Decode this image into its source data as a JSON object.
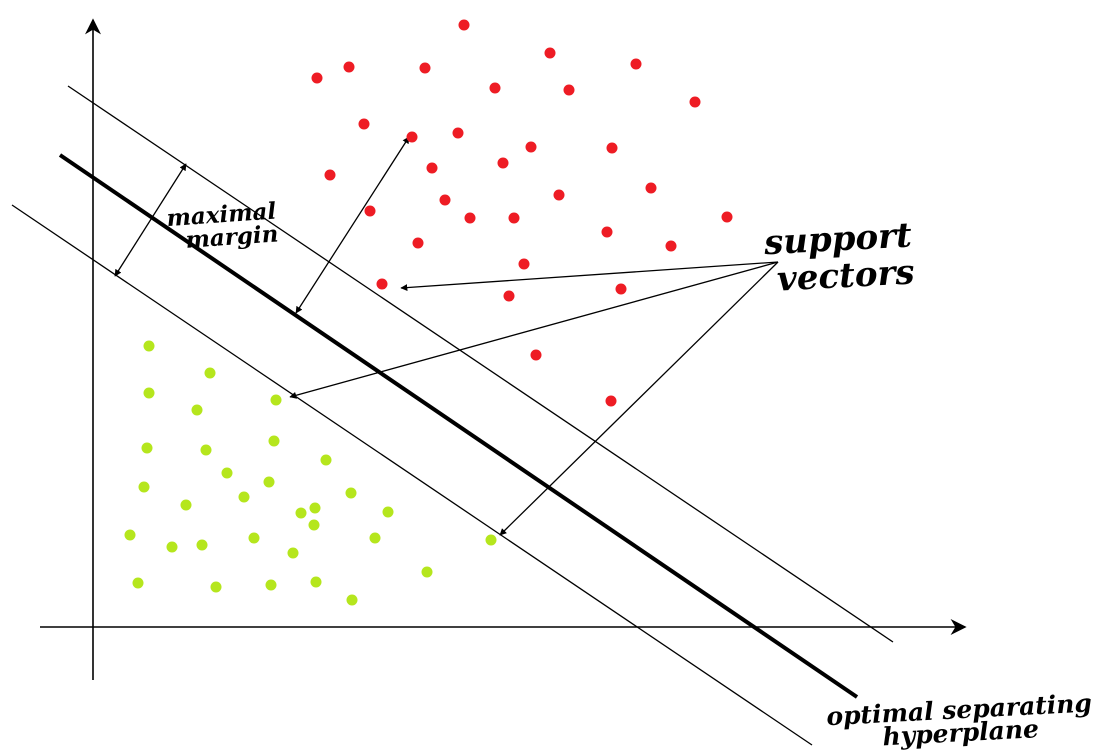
{
  "labels": {
    "margin_line1": "maximal",
    "margin_line2": "margin",
    "support_line1": "support",
    "support_line2": "vectors",
    "hyperplane_line1": "optimal separating",
    "hyperplane_line2": "hyperplane"
  },
  "colors": {
    "class_positive": "#ee1c24",
    "class_negative": "#b5e61d",
    "lines": "#000000"
  }
}
